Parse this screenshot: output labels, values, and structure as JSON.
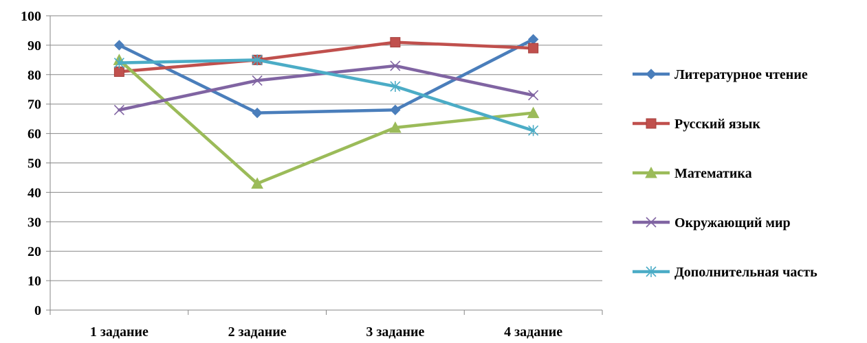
{
  "chart_data": {
    "type": "line",
    "categories": [
      "1 задание",
      "2 задание",
      "3 задание",
      "4 задание"
    ],
    "ylim": [
      0,
      100
    ],
    "yticks": [
      0,
      10,
      20,
      30,
      40,
      50,
      60,
      70,
      80,
      90,
      100
    ],
    "grid": "horizontal",
    "legend_position": "right",
    "series": [
      {
        "name": "Литературное чтение",
        "values": [
          90,
          67,
          68,
          92
        ],
        "color": "#4a7ebb",
        "marker": "diamond"
      },
      {
        "name": "Русский язык",
        "values": [
          81,
          85,
          91,
          89
        ],
        "color": "#c0504d",
        "marker": "square"
      },
      {
        "name": "Математика",
        "values": [
          85,
          43,
          62,
          67
        ],
        "color": "#9bbb59",
        "marker": "triangle"
      },
      {
        "name": "Окружающий мир",
        "values": [
          68,
          78,
          83,
          73
        ],
        "color": "#8064a2",
        "marker": "x"
      },
      {
        "name": "Дополнительная часть",
        "values": [
          84,
          85,
          76,
          61
        ],
        "color": "#4bacc6",
        "marker": "asterisk"
      }
    ]
  }
}
